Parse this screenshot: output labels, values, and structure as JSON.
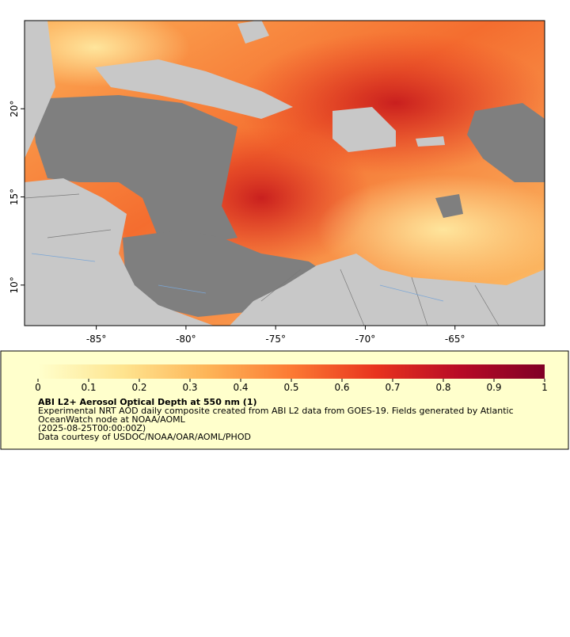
{
  "map": {
    "xlim": [
      -89,
      -60
    ],
    "ylim": [
      7.7,
      25
    ],
    "xticks": [
      {
        "value": -85,
        "label": "-85°"
      },
      {
        "value": -80,
        "label": "-80°"
      },
      {
        "value": -75,
        "label": "-75°"
      },
      {
        "value": -70,
        "label": "-70°"
      },
      {
        "value": -65,
        "label": "-65°"
      }
    ],
    "yticks": [
      {
        "value": 10,
        "label": "10°"
      },
      {
        "value": 15,
        "label": "15°"
      },
      {
        "value": 20,
        "label": "20°"
      }
    ]
  },
  "colorbar": {
    "range": [
      0,
      1
    ],
    "ticks": [
      0,
      0.1,
      0.2,
      0.3,
      0.4,
      0.5,
      0.6,
      0.7,
      0.8,
      0.9,
      1
    ],
    "colormap": [
      "#ffffcc",
      "#fee48f",
      "#fdb558",
      "#fc7a33",
      "#e8331e",
      "#b70a26",
      "#800026"
    ]
  },
  "legend": {
    "title": "ABI L2+ Aerosol Optical Depth at 550 nm (1)",
    "lines": [
      "Experimental NRT AOD daily composite created from ABI L2 data from GOES-19. Fields generated by Atlantic",
      "OceanWatch node at NOAA/AOML",
      "(2025-08-25T00:00:00Z)",
      "Data courtesy of USDOC/NOAA/OAR/AOML/PHOD"
    ]
  }
}
